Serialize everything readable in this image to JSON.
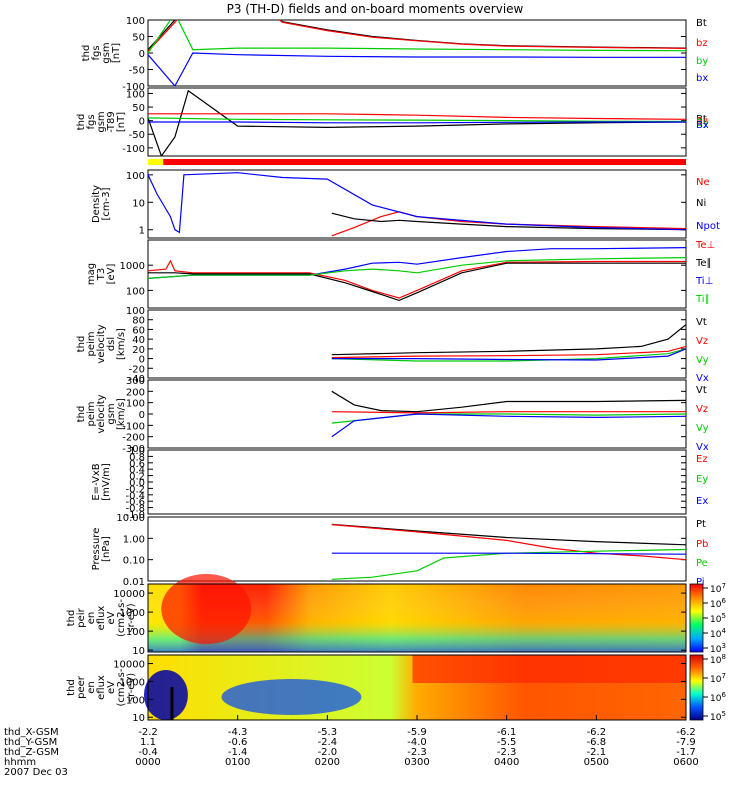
{
  "title": "P3 (TH-D) fields and on-board moments overview",
  "date": "2007 Dec 03",
  "colors": {
    "black": "#000000",
    "red": "#ff0000",
    "green": "#00cc00",
    "blue": "#0000ff",
    "yellow": "#ffff00"
  },
  "chart_data": [
    {
      "type": "line",
      "ylabel": [
        "thd",
        "fgs",
        "gsm",
        "[nT]"
      ],
      "ylim": [
        -100,
        100
      ],
      "yscale": "linear",
      "yticks": [
        "100",
        "50",
        "0",
        "-50",
        "-100"
      ],
      "series": [
        {
          "name": "Bt",
          "color": "black",
          "x": [
            0,
            0.8,
            1.5,
            2,
            2.5,
            3,
            3.5,
            4,
            5,
            6
          ],
          "y": [
            10,
            250,
            95,
            70,
            50,
            38,
            28,
            22,
            18,
            15
          ]
        },
        {
          "name": "bz",
          "color": "red",
          "x": [
            0,
            0.8,
            1.5,
            2,
            2.5,
            3,
            3.5,
            4,
            5,
            6
          ],
          "y": [
            5,
            240,
            93,
            68,
            48,
            37,
            27,
            21,
            17,
            14
          ]
        },
        {
          "name": "by",
          "color": "green",
          "x": [
            0,
            0.3,
            0.5,
            1,
            2,
            3,
            4,
            5,
            6
          ],
          "y": [
            0,
            120,
            10,
            15,
            15,
            12,
            10,
            8,
            7
          ]
        },
        {
          "name": "bx",
          "color": "blue",
          "x": [
            0,
            0.3,
            0.5,
            1,
            2,
            3,
            4,
            5,
            6
          ],
          "y": [
            -5,
            -100,
            0,
            -5,
            -10,
            -12,
            -12,
            -13,
            -13
          ]
        }
      ]
    },
    {
      "type": "line",
      "ylabel": [
        "thd",
        "fgs",
        "gsm",
        "-T89",
        "[nT]"
      ],
      "ylim": [
        -130,
        120
      ],
      "yscale": "linear",
      "yticks": [
        "100",
        "50",
        "0",
        "-50",
        "-100"
      ],
      "series": [
        {
          "name": "Bt",
          "color": "black",
          "x": [
            0,
            0.15,
            0.3,
            0.45,
            1,
            2,
            3,
            4,
            5,
            6
          ],
          "y": [
            10,
            -130,
            -60,
            110,
            -20,
            -25,
            -20,
            -12,
            -8,
            -5
          ]
        },
        {
          "name": "Bz",
          "color": "red",
          "x": [
            0,
            1,
            2,
            3,
            4,
            5,
            6
          ],
          "y": [
            25,
            25,
            25,
            20,
            12,
            8,
            5
          ]
        },
        {
          "name": "By",
          "color": "green",
          "x": [
            0,
            1,
            2,
            3,
            4,
            5,
            6
          ],
          "y": [
            10,
            5,
            3,
            2,
            0,
            -2,
            -3
          ]
        },
        {
          "name": "Bx",
          "color": "blue",
          "x": [
            0,
            1,
            2,
            3,
            4,
            5,
            6
          ],
          "y": [
            -5,
            -5,
            -8,
            -8,
            -6,
            -5,
            -5
          ]
        }
      ],
      "mode_bar": {
        "yellow_until": 0.17,
        "red_from": 0.17
      }
    },
    {
      "type": "line",
      "ylabel": [
        "Density",
        "[cm-3]"
      ],
      "ylim": [
        0.5,
        150
      ],
      "yscale": "log",
      "yticks": [
        "100",
        "10",
        "1"
      ],
      "series": [
        {
          "name": "Ne",
          "color": "red",
          "x": [
            2.05,
            2.3,
            2.6,
            2.8,
            3.0,
            3.5,
            4,
            5,
            6
          ],
          "y": [
            0.6,
            1.2,
            3,
            4.5,
            3,
            2,
            1.6,
            1.3,
            1.1
          ]
        },
        {
          "name": "Ni",
          "color": "black",
          "x": [
            2.05,
            2.3,
            2.6,
            2.8,
            3.0,
            3.5,
            4,
            5,
            6
          ],
          "y": [
            4,
            2.5,
            2,
            2.2,
            2,
            1.6,
            1.3,
            1.1,
            1.0
          ]
        },
        {
          "name": "Npot",
          "color": "blue",
          "x": [
            0,
            0.1,
            0.25,
            0.3,
            0.35,
            0.4,
            1,
            1.5,
            2.0,
            2.5,
            3,
            4,
            5,
            6
          ],
          "y": [
            100,
            20,
            3,
            1,
            0.8,
            100,
            120,
            80,
            70,
            8,
            3,
            1.6,
            1.2,
            1.0
          ]
        }
      ]
    },
    {
      "type": "line",
      "ylabel": [
        "mag",
        "T3",
        "[eV]"
      ],
      "ylim": [
        20,
        10000
      ],
      "yscale": "log",
      "yticks": [
        "1000",
        "100"
      ],
      "series": [
        {
          "name": "Te⊥",
          "color": "red",
          "x": [
            0,
            0.2,
            0.25,
            0.3,
            0.5,
            1,
            1.8,
            2.2,
            2.5,
            2.8,
            3.0,
            3.5,
            4,
            5,
            6
          ],
          "y": [
            600,
            700,
            1500,
            600,
            500,
            500,
            500,
            250,
            100,
            50,
            100,
            600,
            1300,
            1400,
            1400
          ]
        },
        {
          "name": "Te∥",
          "color": "black",
          "x": [
            0,
            0.3,
            0.5,
            1,
            1.8,
            2.2,
            2.5,
            2.8,
            3.0,
            3.5,
            4,
            5,
            6
          ],
          "y": [
            500,
            500,
            450,
            450,
            450,
            200,
            90,
            40,
            80,
            500,
            1200,
            1200,
            1200
          ]
        },
        {
          "name": "Ti⊥",
          "color": "blue",
          "x": [
            0,
            0.5,
            1,
            1.8,
            2.2,
            2.5,
            2.8,
            3.0,
            3.5,
            4,
            4.5,
            5,
            6
          ],
          "y": [
            300,
            400,
            400,
            400,
            700,
            1200,
            1300,
            1100,
            2000,
            3500,
            4500,
            4500,
            5000
          ]
        },
        {
          "name": "Ti∥",
          "color": "green",
          "x": [
            0,
            0.5,
            1,
            1.8,
            2.2,
            2.5,
            2.8,
            3.0,
            3.5,
            4,
            5,
            6
          ],
          "y": [
            300,
            400,
            400,
            400,
            600,
            700,
            600,
            500,
            1000,
            1500,
            1800,
            2000
          ]
        }
      ]
    },
    {
      "type": "line",
      "ylabel": [
        "thd",
        "peim",
        "velocity",
        "dsl",
        "[km/s]"
      ],
      "ylim": [
        -40,
        100
      ],
      "yscale": "linear",
      "yticks": [
        "100",
        "80",
        "60",
        "40",
        "20",
        "0",
        "-20",
        "-40"
      ],
      "series": [
        {
          "name": "Vt",
          "color": "black",
          "x": [
            2.05,
            3,
            4,
            5,
            5.5,
            5.8,
            6
          ],
          "y": [
            8,
            12,
            15,
            20,
            25,
            40,
            70
          ]
        },
        {
          "name": "Vz",
          "color": "red",
          "x": [
            2.05,
            3,
            4,
            5,
            5.8,
            6
          ],
          "y": [
            2,
            5,
            6,
            8,
            15,
            25
          ]
        },
        {
          "name": "Vy",
          "color": "green",
          "x": [
            2.05,
            3,
            4,
            5,
            5.8,
            6
          ],
          "y": [
            0,
            -5,
            -5,
            0,
            10,
            20
          ]
        },
        {
          "name": "Vx",
          "color": "blue",
          "x": [
            2.05,
            3,
            4,
            5,
            5.8,
            6
          ],
          "y": [
            0,
            0,
            -2,
            -3,
            5,
            20
          ]
        }
      ]
    },
    {
      "type": "line",
      "ylabel": [
        "thd",
        "peim",
        "velocity",
        "gsm",
        "[km/s]"
      ],
      "ylim": [
        -300,
        300
      ],
      "yscale": "linear",
      "yticks": [
        "300",
        "200",
        "100",
        "0",
        "-100",
        "-200",
        "-300"
      ],
      "series": [
        {
          "name": "Vt",
          "color": "black",
          "x": [
            2.05,
            2.3,
            2.6,
            3,
            3.5,
            4,
            5,
            6
          ],
          "y": [
            200,
            80,
            30,
            20,
            60,
            110,
            110,
            120
          ]
        },
        {
          "name": "Vz",
          "color": "red",
          "x": [
            2.05,
            3,
            4,
            5,
            6
          ],
          "y": [
            20,
            10,
            20,
            20,
            20
          ]
        },
        {
          "name": "Vy",
          "color": "green",
          "x": [
            2.05,
            3,
            4,
            5,
            6
          ],
          "y": [
            -80,
            0,
            0,
            -10,
            0
          ]
        },
        {
          "name": "Vx",
          "color": "blue",
          "x": [
            2.05,
            2.3,
            3,
            4,
            5,
            6
          ],
          "y": [
            -200,
            -60,
            0,
            -20,
            -30,
            -20
          ]
        }
      ]
    },
    {
      "type": "line",
      "ylabel": [
        "E=-VxB",
        "[mV/m]"
      ],
      "ylim": [
        -1,
        1
      ],
      "yscale": "linear",
      "yticks": [
        "1.0",
        "0.8",
        "0.6",
        "0.4",
        "0.2",
        "0.0",
        "-0.2",
        "-0.4",
        "-0.6",
        "-0.8",
        "-1.0"
      ],
      "series": [
        {
          "name": "Ez",
          "color": "red",
          "x": [],
          "y": []
        },
        {
          "name": "Ey",
          "color": "green",
          "x": [],
          "y": []
        },
        {
          "name": "Ex",
          "color": "blue",
          "x": [],
          "y": []
        }
      ]
    },
    {
      "type": "line",
      "ylabel": [
        "Pressure",
        "[nPa]"
      ],
      "ylim": [
        0.01,
        10
      ],
      "yscale": "log",
      "yticks": [
        "10.00",
        "1.00",
        "0.10",
        "0.01"
      ],
      "series": [
        {
          "name": "Pt",
          "color": "black",
          "x": [
            2.05,
            3,
            4,
            5,
            6
          ],
          "y": [
            4.5,
            2.2,
            1.1,
            0.7,
            0.5
          ]
        },
        {
          "name": "Pb",
          "color": "red",
          "x": [
            2.05,
            3,
            4,
            4.5,
            5,
            5.5,
            6
          ],
          "y": [
            4.4,
            2.0,
            0.8,
            0.35,
            0.2,
            0.15,
            0.1
          ]
        },
        {
          "name": "Pe",
          "color": "green",
          "x": [
            2.05,
            2.5,
            3.0,
            3.3,
            4,
            5,
            6
          ],
          "y": [
            0.012,
            0.015,
            0.03,
            0.12,
            0.2,
            0.25,
            0.3
          ]
        },
        {
          "name": "Pi",
          "color": "blue",
          "x": [
            2.05,
            3,
            4,
            5,
            6
          ],
          "y": [
            0.2,
            0.2,
            0.2,
            0.19,
            0.18
          ]
        }
      ]
    },
    {
      "type": "heatmap",
      "ylabel": [
        "thd",
        "peir",
        "en",
        "eflux",
        "eV",
        "(cm2-s-",
        "sr-eV)"
      ],
      "yscale": "log",
      "ylim": [
        8,
        30000
      ],
      "yticks": [
        "10000",
        "1000",
        "100",
        "10"
      ],
      "colorbar_ticks": [
        "10^7",
        "10^6",
        "10^5",
        "10^4",
        "10^3"
      ],
      "clim_log": [
        3,
        7
      ]
    },
    {
      "type": "heatmap",
      "ylabel": [
        "thd",
        "peer",
        "en",
        "eflux",
        "eV",
        "(cm2-s-",
        "sr-eV)"
      ],
      "yscale": "log",
      "ylim": [
        7,
        30000
      ],
      "yticks": [
        "10000",
        "1000",
        "100",
        "10"
      ],
      "colorbar_ticks": [
        "10^8",
        "10^7",
        "10^6",
        "10^5"
      ],
      "clim_log": [
        5,
        8
      ]
    }
  ],
  "xaxis": {
    "row_labels": [
      "thd_X-GSM",
      "thd_Y-GSM",
      "thd_Z-GSM",
      "hhmm"
    ],
    "ticks": [
      {
        "X": "-2.2",
        "Y": "1.1",
        "Z": "-0.4",
        "t": "0000"
      },
      {
        "X": "-4.3",
        "Y": "-0.6",
        "Z": "-1.4",
        "t": "0100"
      },
      {
        "X": "-5.3",
        "Y": "-2.4",
        "Z": "-2.0",
        "t": "0200"
      },
      {
        "X": "-5.9",
        "Y": "-4.0",
        "Z": "-2.3",
        "t": "0300"
      },
      {
        "X": "-6.1",
        "Y": "-5.5",
        "Z": "-2.3",
        "t": "0400"
      },
      {
        "X": "-6.2",
        "Y": "-6.8",
        "Z": "-2.1",
        "t": "0500"
      },
      {
        "X": "-6.2",
        "Y": "-7.9",
        "Z": "-1.7",
        "t": "0600"
      }
    ]
  }
}
